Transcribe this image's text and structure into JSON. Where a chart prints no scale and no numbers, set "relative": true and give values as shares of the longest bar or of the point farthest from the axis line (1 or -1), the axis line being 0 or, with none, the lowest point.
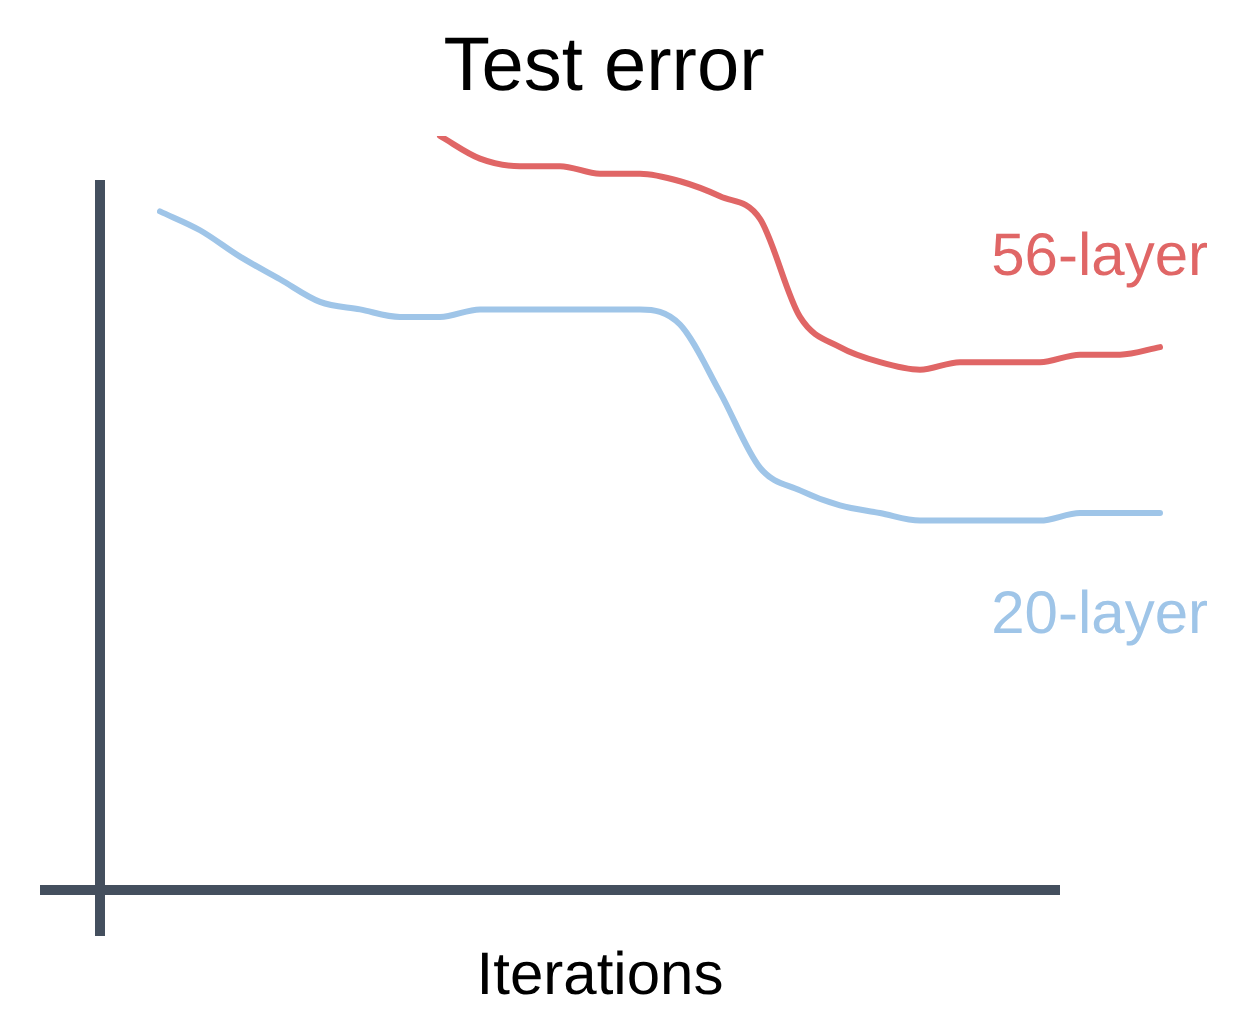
{
  "chart_data": {
    "type": "line",
    "relative": true,
    "title": "Test error",
    "xlabel": "Iterations",
    "categories": [
      null,
      null,
      null,
      null,
      null,
      null,
      null,
      null,
      null,
      null,
      null,
      null,
      null,
      null,
      null,
      null,
      null,
      null,
      null,
      null,
      null,
      null,
      null,
      null,
      null,
      null
    ],
    "series": [
      {
        "name": "56-layer",
        "color": "#e06666",
        "values": [
          null,
          null,
          null,
          null,
          null,
          null,
          null,
          1.0,
          0.97,
          0.96,
          0.96,
          0.95,
          0.95,
          0.94,
          0.92,
          0.89,
          0.76,
          0.72,
          0.7,
          0.69,
          0.7,
          0.7,
          0.7,
          0.71,
          0.71,
          0.72
        ]
      },
      {
        "name": "20-layer",
        "color": "#9fc5e8",
        "values": [
          0.9,
          0.875,
          0.84,
          0.81,
          0.78,
          0.77,
          0.76,
          0.76,
          0.77,
          0.77,
          0.77,
          0.77,
          0.77,
          0.75,
          0.66,
          0.56,
          0.53,
          0.51,
          0.5,
          0.49,
          0.49,
          0.49,
          0.49,
          0.5,
          0.5,
          0.5
        ]
      }
    ]
  }
}
